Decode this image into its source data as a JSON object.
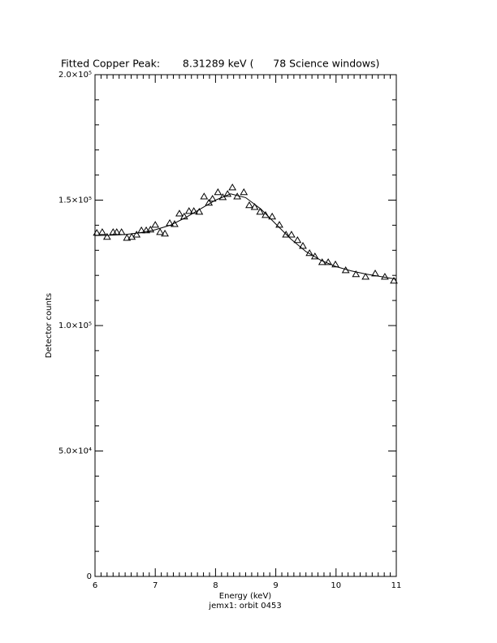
{
  "chart_data": {
    "type": "line",
    "title": "Fitted Copper Peak:       8.31289 keV (      78 Science windows)",
    "x_label": "Energy (keV)",
    "y_label": "Detector counts",
    "footer": "jemx1: orbit 0453",
    "xlim": [
      6,
      11
    ],
    "xticks": [
      6,
      7,
      8,
      9,
      10,
      11
    ],
    "x_minor_ticks": 10,
    "ylim": [
      0,
      200000
    ],
    "yticks": [
      {
        "value": 0,
        "label": "0"
      },
      {
        "value": 50000,
        "label": "5.0×10⁴"
      },
      {
        "value": 100000,
        "label": "1.0×10⁵"
      },
      {
        "value": 150000,
        "label": "1.5×10⁵"
      },
      {
        "value": 200000,
        "label": "2.0×10⁵"
      }
    ],
    "y_minor_ticks": 5,
    "series": [
      {
        "marker": "triangle",
        "line": false,
        "color": "#000000",
        "x": [
          6.03,
          6.12,
          6.2,
          6.3,
          6.36,
          6.44,
          6.53,
          6.61,
          6.69,
          6.77,
          6.85,
          6.92,
          7.0,
          7.08,
          7.16,
          7.24,
          7.32,
          7.4,
          7.48,
          7.56,
          7.64,
          7.73,
          7.81,
          7.89,
          7.95,
          8.04,
          8.12,
          8.2,
          8.28,
          8.36,
          8.47,
          8.56,
          8.65,
          8.74,
          8.83,
          8.94,
          9.06,
          9.17,
          9.26,
          9.36,
          9.45,
          9.56,
          9.65,
          9.77,
          9.87,
          9.99,
          10.16,
          10.33,
          10.49,
          10.65,
          10.81,
          10.96
        ],
        "values": [
          136900,
          137200,
          135300,
          137200,
          137200,
          137200,
          134900,
          135300,
          136200,
          137900,
          137900,
          138200,
          140100,
          137200,
          136600,
          140800,
          140400,
          144600,
          143400,
          145600,
          145600,
          145300,
          151400,
          148900,
          150500,
          153100,
          151100,
          152400,
          155000,
          151400,
          153100,
          147900,
          147200,
          145300,
          144000,
          143400,
          140100,
          136200,
          136200,
          134000,
          131700,
          128800,
          127500,
          125200,
          125200,
          124300,
          122000,
          120400,
          119400,
          120700,
          119400,
          117800
        ]
      },
      {
        "marker": "none",
        "line": true,
        "color": "#000000",
        "x": [
          6,
          6.25,
          6.5,
          6.75,
          7,
          7.25,
          7.5,
          7.75,
          8,
          8.25,
          8.5,
          8.75,
          9,
          9.25,
          9.5,
          9.75,
          10,
          10.25,
          10.5,
          10.75,
          11
        ],
        "values": [
          135900,
          136000,
          136300,
          137000,
          138200,
          140000,
          143000,
          146500,
          150000,
          152500,
          151000,
          146500,
          140500,
          134500,
          129500,
          126000,
          123500,
          121800,
          120500,
          119500,
          118500
        ]
      }
    ]
  }
}
